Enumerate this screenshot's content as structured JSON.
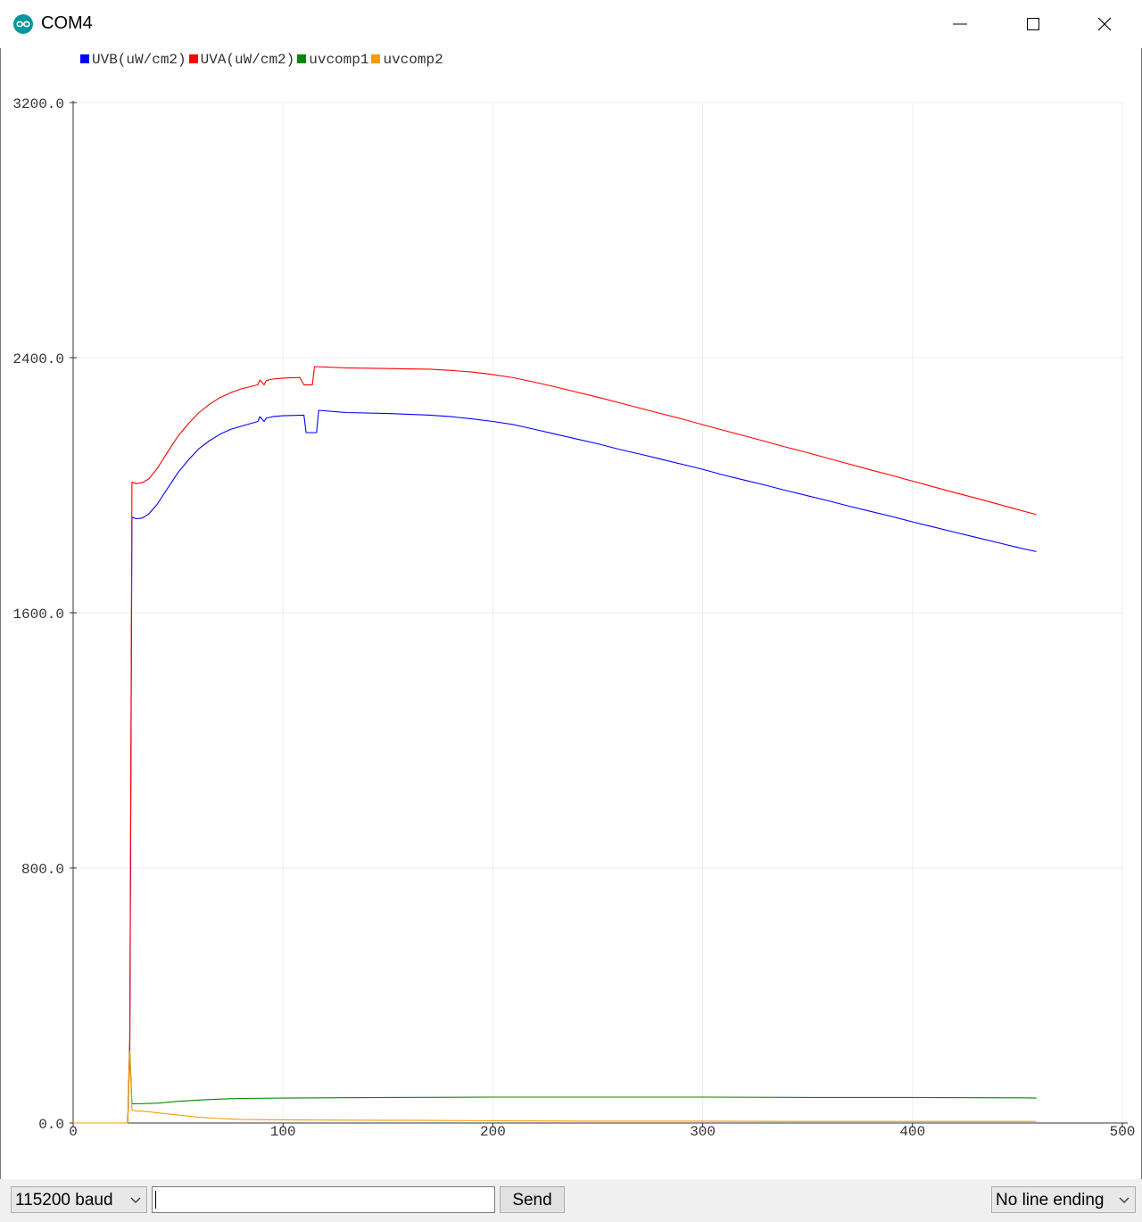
{
  "window": {
    "title": "COM4"
  },
  "colors": {
    "uvb": "#0000ff",
    "uva": "#ff0000",
    "uvcomp1": "#008800",
    "uvcomp2": "#ff9900",
    "teal": "#00979c"
  },
  "icons": {
    "app": "arduino-logo-icon",
    "minimize": "minimize-icon",
    "maximize": "maximize-icon",
    "close": "close-icon"
  },
  "chart_data": {
    "type": "line",
    "legend": "top-left",
    "grid": true,
    "xlim": [
      0,
      500
    ],
    "ylim": [
      0,
      3200
    ],
    "x_ticks": [
      "0",
      "100",
      "200",
      "300",
      "400",
      "500"
    ],
    "y_ticks": [
      "0.0",
      "800.0",
      "1600.0",
      "2400.0",
      "3200.0"
    ],
    "series": [
      {
        "name": "UVB(uW/cm2)",
        "color": "#0000ff",
        "points": [
          [
            0,
            0
          ],
          [
            26,
            0
          ],
          [
            27,
            250
          ],
          [
            28,
            1900
          ],
          [
            30,
            1895
          ],
          [
            33,
            1897
          ],
          [
            36,
            1910
          ],
          [
            40,
            1940
          ],
          [
            45,
            1990
          ],
          [
            50,
            2040
          ],
          [
            55,
            2080
          ],
          [
            60,
            2115
          ],
          [
            65,
            2140
          ],
          [
            70,
            2160
          ],
          [
            75,
            2175
          ],
          [
            80,
            2185
          ],
          [
            88,
            2200
          ],
          [
            89,
            2215
          ],
          [
            91,
            2200
          ],
          [
            92,
            2210
          ],
          [
            95,
            2215
          ],
          [
            100,
            2218
          ],
          [
            110,
            2220
          ],
          [
            111,
            2165
          ],
          [
            116,
            2165
          ],
          [
            117,
            2235
          ],
          [
            130,
            2228
          ],
          [
            150,
            2225
          ],
          [
            170,
            2220
          ],
          [
            180,
            2215
          ],
          [
            190,
            2208
          ],
          [
            200,
            2200
          ],
          [
            210,
            2190
          ],
          [
            220,
            2175
          ],
          [
            230,
            2160
          ],
          [
            240,
            2145
          ],
          [
            250,
            2130
          ],
          [
            260,
            2113
          ],
          [
            270,
            2098
          ],
          [
            280,
            2082
          ],
          [
            290,
            2066
          ],
          [
            300,
            2050
          ],
          [
            310,
            2032
          ],
          [
            320,
            2016
          ],
          [
            330,
            2000
          ],
          [
            340,
            1983
          ],
          [
            350,
            1967
          ],
          [
            360,
            1951
          ],
          [
            370,
            1934
          ],
          [
            380,
            1918
          ],
          [
            390,
            1902
          ],
          [
            400,
            1885
          ],
          [
            410,
            1869
          ],
          [
            420,
            1853
          ],
          [
            430,
            1837
          ],
          [
            440,
            1821
          ],
          [
            450,
            1805
          ],
          [
            459,
            1792
          ]
        ]
      },
      {
        "name": "UVA(uW/cm2)",
        "color": "#ff0000",
        "points": [
          [
            0,
            0
          ],
          [
            26,
            0
          ],
          [
            27,
            270
          ],
          [
            28,
            2010
          ],
          [
            30,
            2005
          ],
          [
            33,
            2008
          ],
          [
            36,
            2020
          ],
          [
            40,
            2052
          ],
          [
            45,
            2104
          ],
          [
            50,
            2154
          ],
          [
            55,
            2194
          ],
          [
            60,
            2228
          ],
          [
            65,
            2254
          ],
          [
            70,
            2275
          ],
          [
            75,
            2290
          ],
          [
            80,
            2302
          ],
          [
            88,
            2315
          ],
          [
            89,
            2330
          ],
          [
            91,
            2315
          ],
          [
            92,
            2328
          ],
          [
            95,
            2333
          ],
          [
            100,
            2336
          ],
          [
            108,
            2338
          ],
          [
            110,
            2315
          ],
          [
            114,
            2315
          ],
          [
            115,
            2372
          ],
          [
            130,
            2368
          ],
          [
            150,
            2366
          ],
          [
            170,
            2364
          ],
          [
            180,
            2360
          ],
          [
            190,
            2355
          ],
          [
            200,
            2347
          ],
          [
            210,
            2337
          ],
          [
            220,
            2323
          ],
          [
            230,
            2308
          ],
          [
            240,
            2292
          ],
          [
            250,
            2276
          ],
          [
            260,
            2259
          ],
          [
            270,
            2242
          ],
          [
            280,
            2225
          ],
          [
            290,
            2208
          ],
          [
            300,
            2190
          ],
          [
            310,
            2172
          ],
          [
            320,
            2155
          ],
          [
            330,
            2137
          ],
          [
            340,
            2119
          ],
          [
            350,
            2102
          ],
          [
            360,
            2084
          ],
          [
            370,
            2066
          ],
          [
            380,
            2048
          ],
          [
            390,
            2031
          ],
          [
            400,
            2013
          ],
          [
            410,
            1995
          ],
          [
            420,
            1977
          ],
          [
            430,
            1960
          ],
          [
            440,
            1942
          ],
          [
            450,
            1924
          ],
          [
            459,
            1908
          ]
        ]
      },
      {
        "name": "uvcomp1",
        "color": "#008800",
        "points": [
          [
            0,
            0
          ],
          [
            26,
            0
          ],
          [
            27,
            230
          ],
          [
            28,
            60
          ],
          [
            30,
            60
          ],
          [
            40,
            62
          ],
          [
            50,
            68
          ],
          [
            60,
            72
          ],
          [
            70,
            75
          ],
          [
            80,
            77
          ],
          [
            100,
            78
          ],
          [
            120,
            79
          ],
          [
            150,
            80
          ],
          [
            200,
            81
          ],
          [
            250,
            81
          ],
          [
            300,
            81
          ],
          [
            350,
            80
          ],
          [
            400,
            80
          ],
          [
            450,
            79
          ],
          [
            459,
            78
          ]
        ]
      },
      {
        "name": "uvcomp2",
        "color": "#ff9900",
        "points": [
          [
            0,
            0
          ],
          [
            26,
            0
          ],
          [
            27,
            225
          ],
          [
            28,
            40
          ],
          [
            30,
            38
          ],
          [
            35,
            36
          ],
          [
            40,
            32
          ],
          [
            50,
            25
          ],
          [
            60,
            18
          ],
          [
            70,
            14
          ],
          [
            80,
            11
          ],
          [
            100,
            10
          ],
          [
            130,
            9
          ],
          [
            170,
            8
          ],
          [
            200,
            7
          ],
          [
            250,
            6
          ],
          [
            300,
            6
          ],
          [
            350,
            5
          ],
          [
            400,
            5
          ],
          [
            450,
            5
          ],
          [
            459,
            5
          ]
        ]
      }
    ]
  },
  "controls": {
    "baud": "115200 baud",
    "send": "Send",
    "line_ending": "No line ending",
    "input_value": ""
  }
}
